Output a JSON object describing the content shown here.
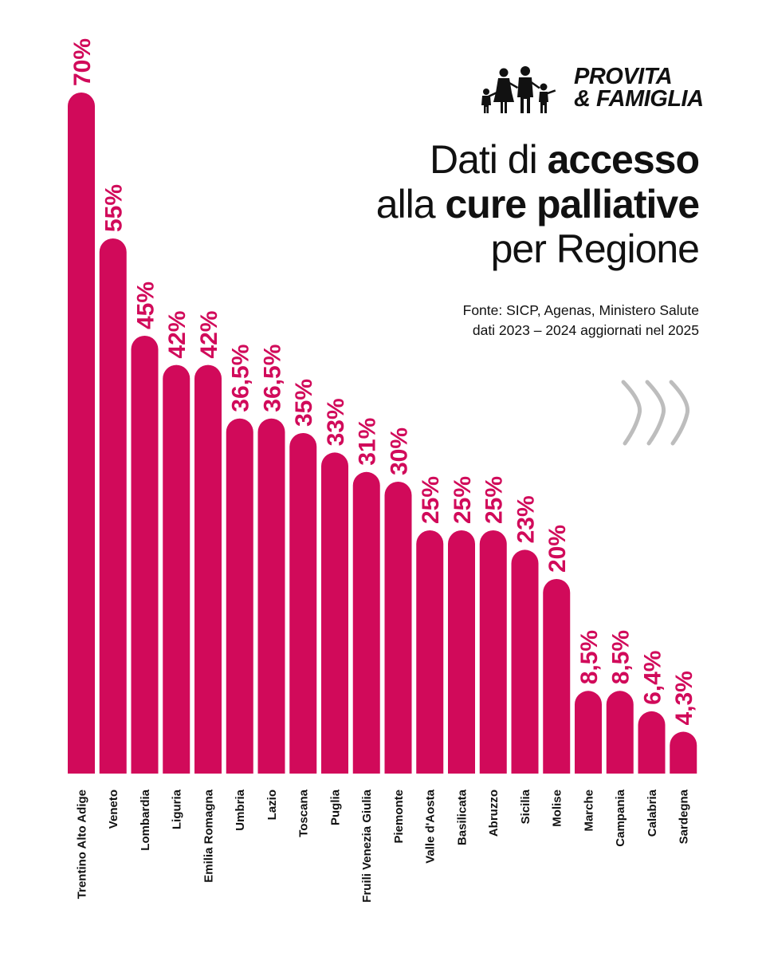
{
  "brand": {
    "name_line1": "PROVITA",
    "name_line2": "& FAMIGLIA",
    "logo_icon": "family-silhouette-icon"
  },
  "title": {
    "line1_regular": "Dati di ",
    "line1_bold": "accesso",
    "line2_regular": "alla ",
    "line2_bold": "cure palliative",
    "line3_regular": "per Regione"
  },
  "source": {
    "line1": "Fonte: SICP, Agenas, Ministero Salute",
    "line2": "dati 2023 – 2024 aggiornati nel 2025"
  },
  "decoration": {
    "icon": "chevrons-right-icon",
    "color": "#bdbdbd"
  },
  "colors": {
    "bar": "#d10a5a",
    "label": "#d10a5a",
    "text": "#111111"
  },
  "chart_data": {
    "type": "bar",
    "orientation": "vertical",
    "unit": "%",
    "categories": [
      "Trentino Alto Adige",
      "Veneto",
      "Lombardia",
      "Liguria",
      "Emilia Romagna",
      "Umbria",
      "Lazio",
      "Toscana",
      "Puglia",
      "Fruili Venezia Giulia",
      "Piemonte",
      "Valle d'Aosta",
      "Basilicata",
      "Abruzzo",
      "Sicilia",
      "Molise",
      "Marche",
      "Campania",
      "Calabria",
      "Sardegna"
    ],
    "values": [
      70,
      55,
      45,
      42,
      42,
      36.5,
      36.5,
      35,
      33,
      31,
      30,
      25,
      25,
      25,
      23,
      20,
      8.5,
      8.5,
      6.4,
      4.3
    ],
    "value_labels": [
      "70%",
      "55%",
      "45%",
      "42%",
      "42%",
      "36,5%",
      "36,5%",
      "35%",
      "33%",
      "31%",
      "30%",
      "25%",
      "25%",
      "25%",
      "23%",
      "20%",
      "8,5%",
      "8,5%",
      "6,4%",
      "4,3%"
    ],
    "ylim": [
      0,
      70
    ],
    "grid": false,
    "legend": "none"
  }
}
